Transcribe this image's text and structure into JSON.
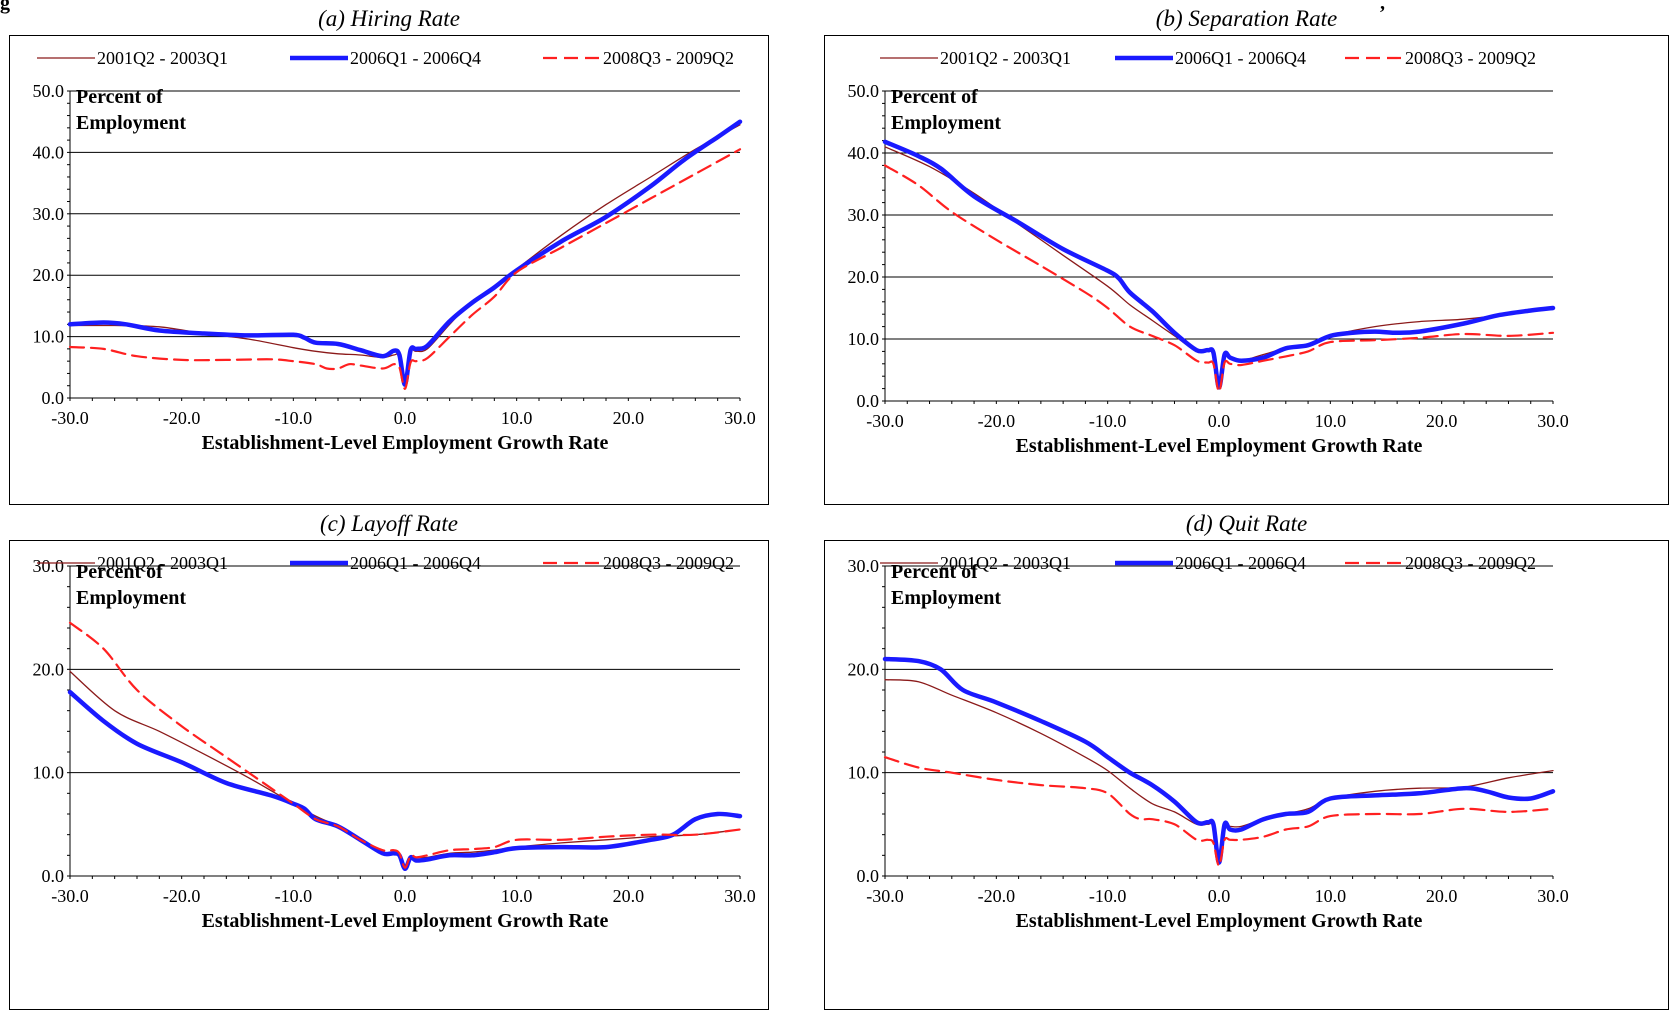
{
  "figure": {
    "header_fragment": "g",
    "header_fragment_right": ","
  },
  "chart_data": [
    {
      "type": "line",
      "title": "(a) Hiring Rate",
      "xlabel": "Establishment-Level Employment Growth Rate",
      "ylabel": "Percent of Employment",
      "ylabel_lines": [
        "Percent of",
        "Employment"
      ],
      "xlim": [
        -30,
        30
      ],
      "ylim": [
        0,
        50
      ],
      "xticks": [
        -30,
        -20,
        -10,
        0,
        10,
        20,
        30
      ],
      "xtick_labels": [
        "-30.0",
        "-20.0",
        "-10.0",
        "0.0",
        "10.0",
        "20.0",
        "30.0"
      ],
      "yticks": [
        0,
        10,
        20,
        30,
        40,
        50
      ],
      "ytick_labels": [
        "0.0",
        "10.0",
        "20.0",
        "30.0",
        "40.0",
        "50.0"
      ],
      "grid": true,
      "legend": "top",
      "series": [
        {
          "name": "2001Q2 - 2003Q1",
          "color": "#8b1a1a",
          "style": "thin",
          "x": [
            -30,
            -26,
            -22,
            -18,
            -14,
            -10,
            -8,
            -6,
            -4,
            -2,
            -1,
            -0.5,
            0,
            0.5,
            1,
            2,
            4,
            6,
            8,
            10,
            14,
            18,
            22,
            26,
            30
          ],
          "y": [
            11.8,
            11.8,
            11.6,
            10.5,
            9.6,
            8.2,
            7.6,
            7.2,
            7.0,
            6.6,
            7.0,
            6.8,
            2.5,
            7.5,
            7.6,
            8.0,
            12.0,
            15.8,
            18.0,
            21.0,
            26.5,
            31.5,
            36.0,
            40.5,
            44.5
          ]
        },
        {
          "name": "2006Q1 - 2006Q4",
          "color": "#1a1aff",
          "style": "thick",
          "x": [
            -30,
            -27,
            -25,
            -22,
            -18,
            -14,
            -10,
            -9,
            -8,
            -6,
            -4,
            -2,
            -1,
            -0.5,
            0,
            0.5,
            1,
            2,
            4,
            6,
            8,
            10,
            14,
            18,
            22,
            25,
            28,
            30
          ],
          "y": [
            12.0,
            12.3,
            12.0,
            11.0,
            10.5,
            10.2,
            10.3,
            9.8,
            9.0,
            8.8,
            7.8,
            6.8,
            7.7,
            7.0,
            2.2,
            7.8,
            8.0,
            8.5,
            12.5,
            15.5,
            18.0,
            20.8,
            25.5,
            29.5,
            34.5,
            38.8,
            42.5,
            45.0
          ]
        },
        {
          "name": "2008Q3 - 2009Q2",
          "color": "#ff2020",
          "style": "dashed",
          "x": [
            -30,
            -27,
            -24,
            -20,
            -16,
            -12,
            -10,
            -8,
            -7,
            -6,
            -5,
            -4,
            -2,
            -1,
            -0.5,
            0,
            0.5,
            1,
            2,
            4,
            6,
            8,
            10,
            14,
            18,
            22,
            26,
            30
          ],
          "y": [
            8.3,
            8.0,
            6.8,
            6.2,
            6.2,
            6.3,
            6.0,
            5.5,
            4.8,
            4.8,
            5.5,
            5.3,
            4.8,
            5.5,
            5.0,
            1.5,
            5.8,
            6.0,
            6.5,
            10.0,
            13.5,
            16.5,
            20.5,
            24.5,
            28.5,
            32.5,
            36.5,
            40.5
          ]
        }
      ]
    },
    {
      "type": "line",
      "title": "(b) Separation Rate",
      "xlabel": "Establishment-Level Employment Growth Rate",
      "ylabel": "Percent of Employment",
      "ylabel_lines": [
        "Percent of",
        "Employment"
      ],
      "xlim": [
        -30,
        30
      ],
      "ylim": [
        0,
        50
      ],
      "xticks": [
        -30,
        -20,
        -10,
        0,
        10,
        20,
        30
      ],
      "xtick_labels": [
        "-30.0",
        "-20.0",
        "-10.0",
        "0.0",
        "10.0",
        "20.0",
        "30.0"
      ],
      "yticks": [
        0,
        10,
        20,
        30,
        40,
        50
      ],
      "ytick_labels": [
        "0.0",
        "10.0",
        "20.0",
        "30.0",
        "40.0",
        "50.0"
      ],
      "grid": true,
      "legend": "top",
      "series": [
        {
          "name": "2001Q2 - 2003Q1",
          "color": "#8b1a1a",
          "style": "thin",
          "x": [
            -30,
            -26,
            -22,
            -18,
            -14,
            -10,
            -8,
            -6,
            -4,
            -2,
            -1,
            -0.5,
            0,
            0.5,
            1,
            2,
            4,
            6,
            8,
            10,
            14,
            18,
            22,
            26,
            30
          ],
          "y": [
            41.0,
            37.8,
            33.5,
            28.5,
            23.5,
            18.5,
            15.5,
            13.0,
            10.5,
            8.0,
            8.0,
            7.8,
            2.5,
            7.5,
            7.0,
            6.5,
            7.5,
            8.5,
            9.0,
            10.5,
            12.0,
            12.8,
            13.2,
            14.0,
            15.0
          ]
        },
        {
          "name": "2006Q1 - 2006Q4",
          "color": "#1a1aff",
          "style": "thick",
          "x": [
            -30,
            -27,
            -25,
            -22,
            -18,
            -14,
            -10,
            -9,
            -8,
            -6,
            -4,
            -2,
            -1,
            -0.5,
            0,
            0.5,
            1,
            2,
            4,
            6,
            8,
            10,
            12,
            14,
            16,
            18,
            22,
            25,
            28,
            30
          ],
          "y": [
            41.8,
            39.5,
            37.5,
            33.0,
            28.8,
            24.5,
            21.0,
            19.8,
            17.5,
            14.5,
            11.0,
            8.2,
            8.2,
            7.8,
            2.2,
            7.5,
            7.0,
            6.5,
            7.0,
            8.5,
            9.0,
            10.5,
            11.0,
            11.2,
            11.0,
            11.2,
            12.5,
            13.8,
            14.6,
            15.0
          ]
        },
        {
          "name": "2008Q3 - 2009Q2",
          "color": "#ff2020",
          "style": "dashed",
          "x": [
            -30,
            -27,
            -24,
            -20,
            -16,
            -12,
            -10,
            -8,
            -6,
            -4,
            -2,
            -1,
            -0.5,
            0,
            0.5,
            1,
            2,
            4,
            6,
            8,
            10,
            14,
            18,
            22,
            26,
            30
          ],
          "y": [
            38.0,
            34.8,
            30.5,
            26.0,
            21.8,
            17.5,
            15.0,
            12.0,
            10.5,
            9.0,
            6.5,
            6.2,
            6.0,
            1.5,
            6.2,
            6.0,
            5.8,
            6.5,
            7.2,
            8.0,
            9.5,
            9.8,
            10.2,
            10.8,
            10.5,
            11.0
          ]
        }
      ]
    },
    {
      "type": "line",
      "title": "(c) Layoff Rate",
      "xlabel": "Establishment-Level Employment Growth Rate",
      "ylabel": "Percent of Employment",
      "ylabel_lines": [
        "Percent of",
        "Employment"
      ],
      "xlim": [
        -30,
        30
      ],
      "ylim": [
        0,
        30
      ],
      "xticks": [
        -30,
        -20,
        -10,
        0,
        10,
        20,
        30
      ],
      "xtick_labels": [
        "-30.0",
        "-20.0",
        "-10.0",
        "0.0",
        "10.0",
        "20.0",
        "30.0"
      ],
      "yticks": [
        0,
        10,
        20,
        30
      ],
      "ytick_labels": [
        "0.0",
        "10.0",
        "20.0",
        "30.0"
      ],
      "grid": true,
      "legend": "top",
      "series": [
        {
          "name": "2001Q2 - 2003Q1",
          "color": "#8b1a1a",
          "style": "thin",
          "x": [
            -30,
            -26,
            -22,
            -18,
            -14,
            -10,
            -8,
            -6,
            -4,
            -2,
            -1,
            -0.5,
            0,
            0.5,
            1,
            2,
            4,
            6,
            8,
            10,
            14,
            18,
            22,
            26,
            30
          ],
          "y": [
            19.8,
            16.0,
            14.0,
            11.8,
            9.5,
            7.0,
            5.8,
            4.8,
            3.5,
            2.2,
            2.2,
            2.0,
            0.8,
            1.8,
            1.8,
            1.8,
            2.2,
            2.3,
            2.5,
            2.8,
            3.2,
            3.5,
            3.8,
            4.0,
            4.5
          ]
        },
        {
          "name": "2006Q1 - 2006Q4",
          "color": "#1a1aff",
          "style": "thick",
          "x": [
            -30,
            -27,
            -24,
            -20,
            -16,
            -12,
            -10,
            -9,
            -8,
            -6,
            -4,
            -2,
            -1,
            -0.5,
            0,
            0.5,
            1,
            2,
            4,
            6,
            8,
            10,
            14,
            18,
            22,
            24,
            26,
            28,
            30
          ],
          "y": [
            17.8,
            15.0,
            12.8,
            11.0,
            9.0,
            7.8,
            7.0,
            6.5,
            5.5,
            4.8,
            3.5,
            2.2,
            2.2,
            2.0,
            0.7,
            1.8,
            1.5,
            1.6,
            2.0,
            2.0,
            2.3,
            2.7,
            2.8,
            2.8,
            3.5,
            4.0,
            5.5,
            6.0,
            5.8
          ]
        },
        {
          "name": "2008Q3 - 2009Q2",
          "color": "#ff2020",
          "style": "dashed",
          "x": [
            -30,
            -27,
            -24,
            -20,
            -16,
            -12,
            -10,
            -8,
            -6,
            -4,
            -2,
            -1,
            -0.5,
            0,
            0.5,
            1,
            2,
            4,
            6,
            8,
            10,
            14,
            18,
            22,
            26,
            30
          ],
          "y": [
            24.5,
            22.0,
            18.0,
            14.5,
            11.5,
            8.5,
            7.0,
            5.5,
            4.8,
            3.5,
            2.5,
            2.5,
            2.2,
            0.8,
            2.0,
            1.8,
            2.0,
            2.5,
            2.6,
            2.8,
            3.5,
            3.5,
            3.8,
            4.0,
            4.0,
            4.5
          ]
        }
      ]
    },
    {
      "type": "line",
      "title": "(d) Quit Rate",
      "xlabel": "Establishment-Level Employment Growth Rate",
      "ylabel": "Percent of Employment",
      "ylabel_lines": [
        "Percent of",
        "Employment"
      ],
      "xlim": [
        -30,
        30
      ],
      "ylim": [
        0,
        30
      ],
      "xticks": [
        -30,
        -20,
        -10,
        0,
        10,
        20,
        30
      ],
      "xtick_labels": [
        "-30.0",
        "-20.0",
        "-10.0",
        "0.0",
        "10.0",
        "20.0",
        "30.0"
      ],
      "yticks": [
        0,
        10,
        20,
        30
      ],
      "ytick_labels": [
        "0.0",
        "10.0",
        "20.0",
        "30.0"
      ],
      "grid": true,
      "legend": "top",
      "series": [
        {
          "name": "2001Q2 - 2003Q1",
          "color": "#8b1a1a",
          "style": "thin",
          "x": [
            -30,
            -27,
            -24,
            -20,
            -16,
            -12,
            -10,
            -8,
            -6,
            -4,
            -2,
            -1,
            -0.5,
            0,
            0.5,
            1,
            2,
            4,
            6,
            8,
            10,
            14,
            18,
            22,
            26,
            30
          ],
          "y": [
            19.0,
            18.8,
            17.5,
            15.8,
            13.8,
            11.5,
            10.2,
            8.5,
            7.0,
            6.2,
            5.0,
            5.0,
            4.8,
            1.5,
            4.8,
            4.8,
            4.8,
            5.5,
            6.0,
            6.5,
            7.5,
            8.2,
            8.5,
            8.6,
            9.5,
            10.2
          ]
        },
        {
          "name": "2006Q1 - 2006Q4",
          "color": "#1a1aff",
          "style": "thick",
          "x": [
            -30,
            -27,
            -25,
            -23,
            -20,
            -16,
            -12,
            -10,
            -8,
            -6,
            -4,
            -2,
            -1,
            -0.5,
            0,
            0.5,
            1,
            2,
            4,
            6,
            8,
            10,
            14,
            18,
            22,
            24,
            26,
            28,
            30
          ],
          "y": [
            21.0,
            20.8,
            20.0,
            18.0,
            16.8,
            15.0,
            13.0,
            11.5,
            10.0,
            8.8,
            7.2,
            5.2,
            5.2,
            5.0,
            1.3,
            5.0,
            4.5,
            4.5,
            5.5,
            6.0,
            6.2,
            7.5,
            7.8,
            8.0,
            8.5,
            8.2,
            7.6,
            7.5,
            8.2
          ]
        },
        {
          "name": "2008Q3 - 2009Q2",
          "color": "#ff2020",
          "style": "dashed",
          "x": [
            -30,
            -27,
            -24,
            -20,
            -16,
            -12,
            -10,
            -8,
            -7,
            -6,
            -4,
            -2,
            -1,
            -0.5,
            0,
            0.5,
            1,
            2,
            4,
            6,
            8,
            10,
            14,
            18,
            22,
            26,
            30
          ],
          "y": [
            11.5,
            10.5,
            10.0,
            9.3,
            8.8,
            8.5,
            8.0,
            6.0,
            5.5,
            5.5,
            5.0,
            3.5,
            3.5,
            3.2,
            1.0,
            3.5,
            3.5,
            3.5,
            3.8,
            4.5,
            4.8,
            5.8,
            6.0,
            6.0,
            6.5,
            6.2,
            6.5
          ]
        }
      ]
    }
  ]
}
